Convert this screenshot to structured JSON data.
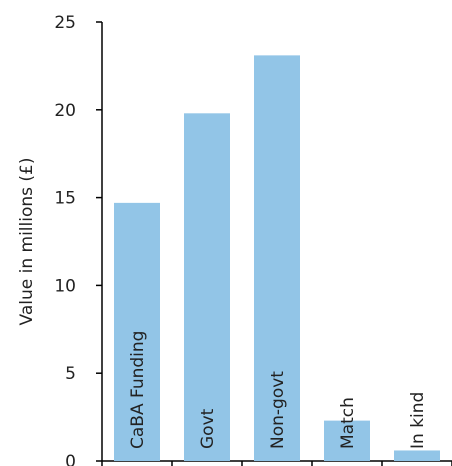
{
  "chart_data": {
    "type": "bar",
    "title": "",
    "xlabel": "",
    "ylabel": "Value in millions (£)",
    "ylim": [
      0,
      25
    ],
    "yticks": [
      0,
      5,
      10,
      15,
      20,
      25
    ],
    "grid": false,
    "legend": "none",
    "categories": [
      "CaBA Funding",
      "Govt",
      "Non-govt",
      "Match",
      "In kind"
    ],
    "values": [
      14.7,
      19.8,
      23.1,
      2.3,
      0.6
    ],
    "bar_labels_inside": true,
    "colors": {
      "bar": "#92c5e7",
      "axis": "#000000",
      "text": "#222222"
    }
  }
}
